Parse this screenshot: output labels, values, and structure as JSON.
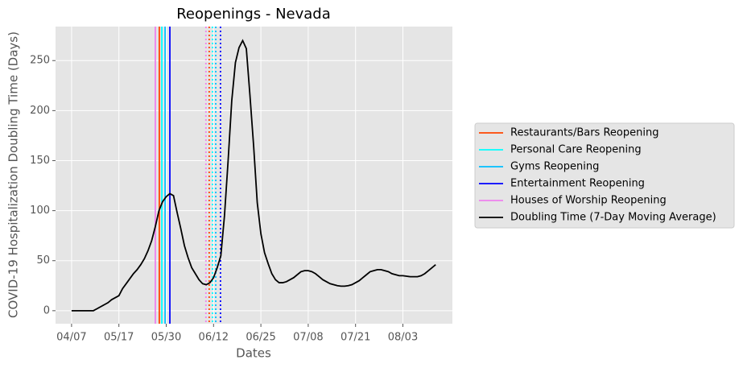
{
  "chart_data": {
    "type": "line",
    "title": "Reopenings - Nevada",
    "xlabel": "Dates",
    "ylabel": "COVID-19 Hospitalization Doubling Time (Days)",
    "categories": [
      "04/07",
      null,
      null,
      null,
      null,
      null,
      null,
      null,
      null,
      null,
      null,
      null,
      null,
      "05/17",
      null,
      null,
      null,
      null,
      null,
      null,
      null,
      null,
      null,
      null,
      null,
      null,
      "05/30",
      null,
      null,
      null,
      null,
      null,
      null,
      null,
      null,
      null,
      null,
      null,
      null,
      "06/12",
      null,
      null,
      null,
      null,
      null,
      null,
      null,
      null,
      null,
      null,
      null,
      null,
      "06/25",
      null,
      null,
      null,
      null,
      null,
      null,
      null,
      null,
      null,
      null,
      null,
      null,
      "07/08",
      null,
      null,
      null,
      null,
      null,
      null,
      null,
      null,
      null,
      null,
      null,
      null,
      "07/21",
      null,
      null,
      null,
      null,
      null,
      null,
      null,
      null,
      null,
      null,
      null,
      null,
      "08/03",
      null,
      null,
      null,
      null,
      null,
      null,
      null,
      null,
      null
    ],
    "xlim": [
      -4.4,
      104.6
    ],
    "ylim": [
      -13,
      284
    ],
    "yticks": [
      0,
      50,
      100,
      150,
      200,
      250
    ],
    "grid": true,
    "legend": "right outside",
    "series": [
      {
        "name": "Restaurants/Bars Reopening",
        "color": "#ff4500",
        "x": 24.1,
        "x_dotted": 37.8
      },
      {
        "name": "Personal Care Reopening",
        "color": "#00ffff",
        "x": 24.8,
        "x_dotted": 38.7
      },
      {
        "name": "Gyms Reopening",
        "color": "#00bfff",
        "x": 25.7,
        "x_dotted": 39.6
      },
      {
        "name": "Entertainment Reopening",
        "color": "#0000ff",
        "x": 27.0,
        "x_dotted": 40.9
      },
      {
        "name": "Houses of Worship Reopening",
        "color": "#ee82ee",
        "x": 23.0,
        "x_dotted": 36.9
      },
      {
        "name": "Doubling Time (7-Day Moving Average)",
        "color": "#000000",
        "values": [
          0,
          0,
          0,
          0,
          0,
          0,
          0,
          2,
          4,
          6,
          8,
          11,
          13,
          15,
          22,
          27,
          32,
          37,
          41,
          46,
          52,
          60,
          70,
          84,
          100,
          109,
          114,
          117,
          115,
          98,
          82,
          65,
          53,
          43,
          37,
          31,
          27,
          26,
          28,
          33,
          43,
          55,
          95,
          150,
          210,
          248,
          263,
          270,
          262,
          215,
          165,
          108,
          77,
          58,
          47,
          37,
          31,
          28,
          28,
          29,
          31,
          33,
          36,
          39,
          40,
          40,
          39,
          37,
          34,
          31,
          29,
          27,
          26,
          25,
          24.5,
          24.5,
          25,
          26,
          28,
          30,
          33,
          36,
          39,
          40,
          41,
          41,
          40,
          39,
          37,
          36,
          35,
          35,
          34.5,
          34,
          34,
          34,
          35,
          37,
          40,
          43,
          46
        ]
      }
    ]
  }
}
